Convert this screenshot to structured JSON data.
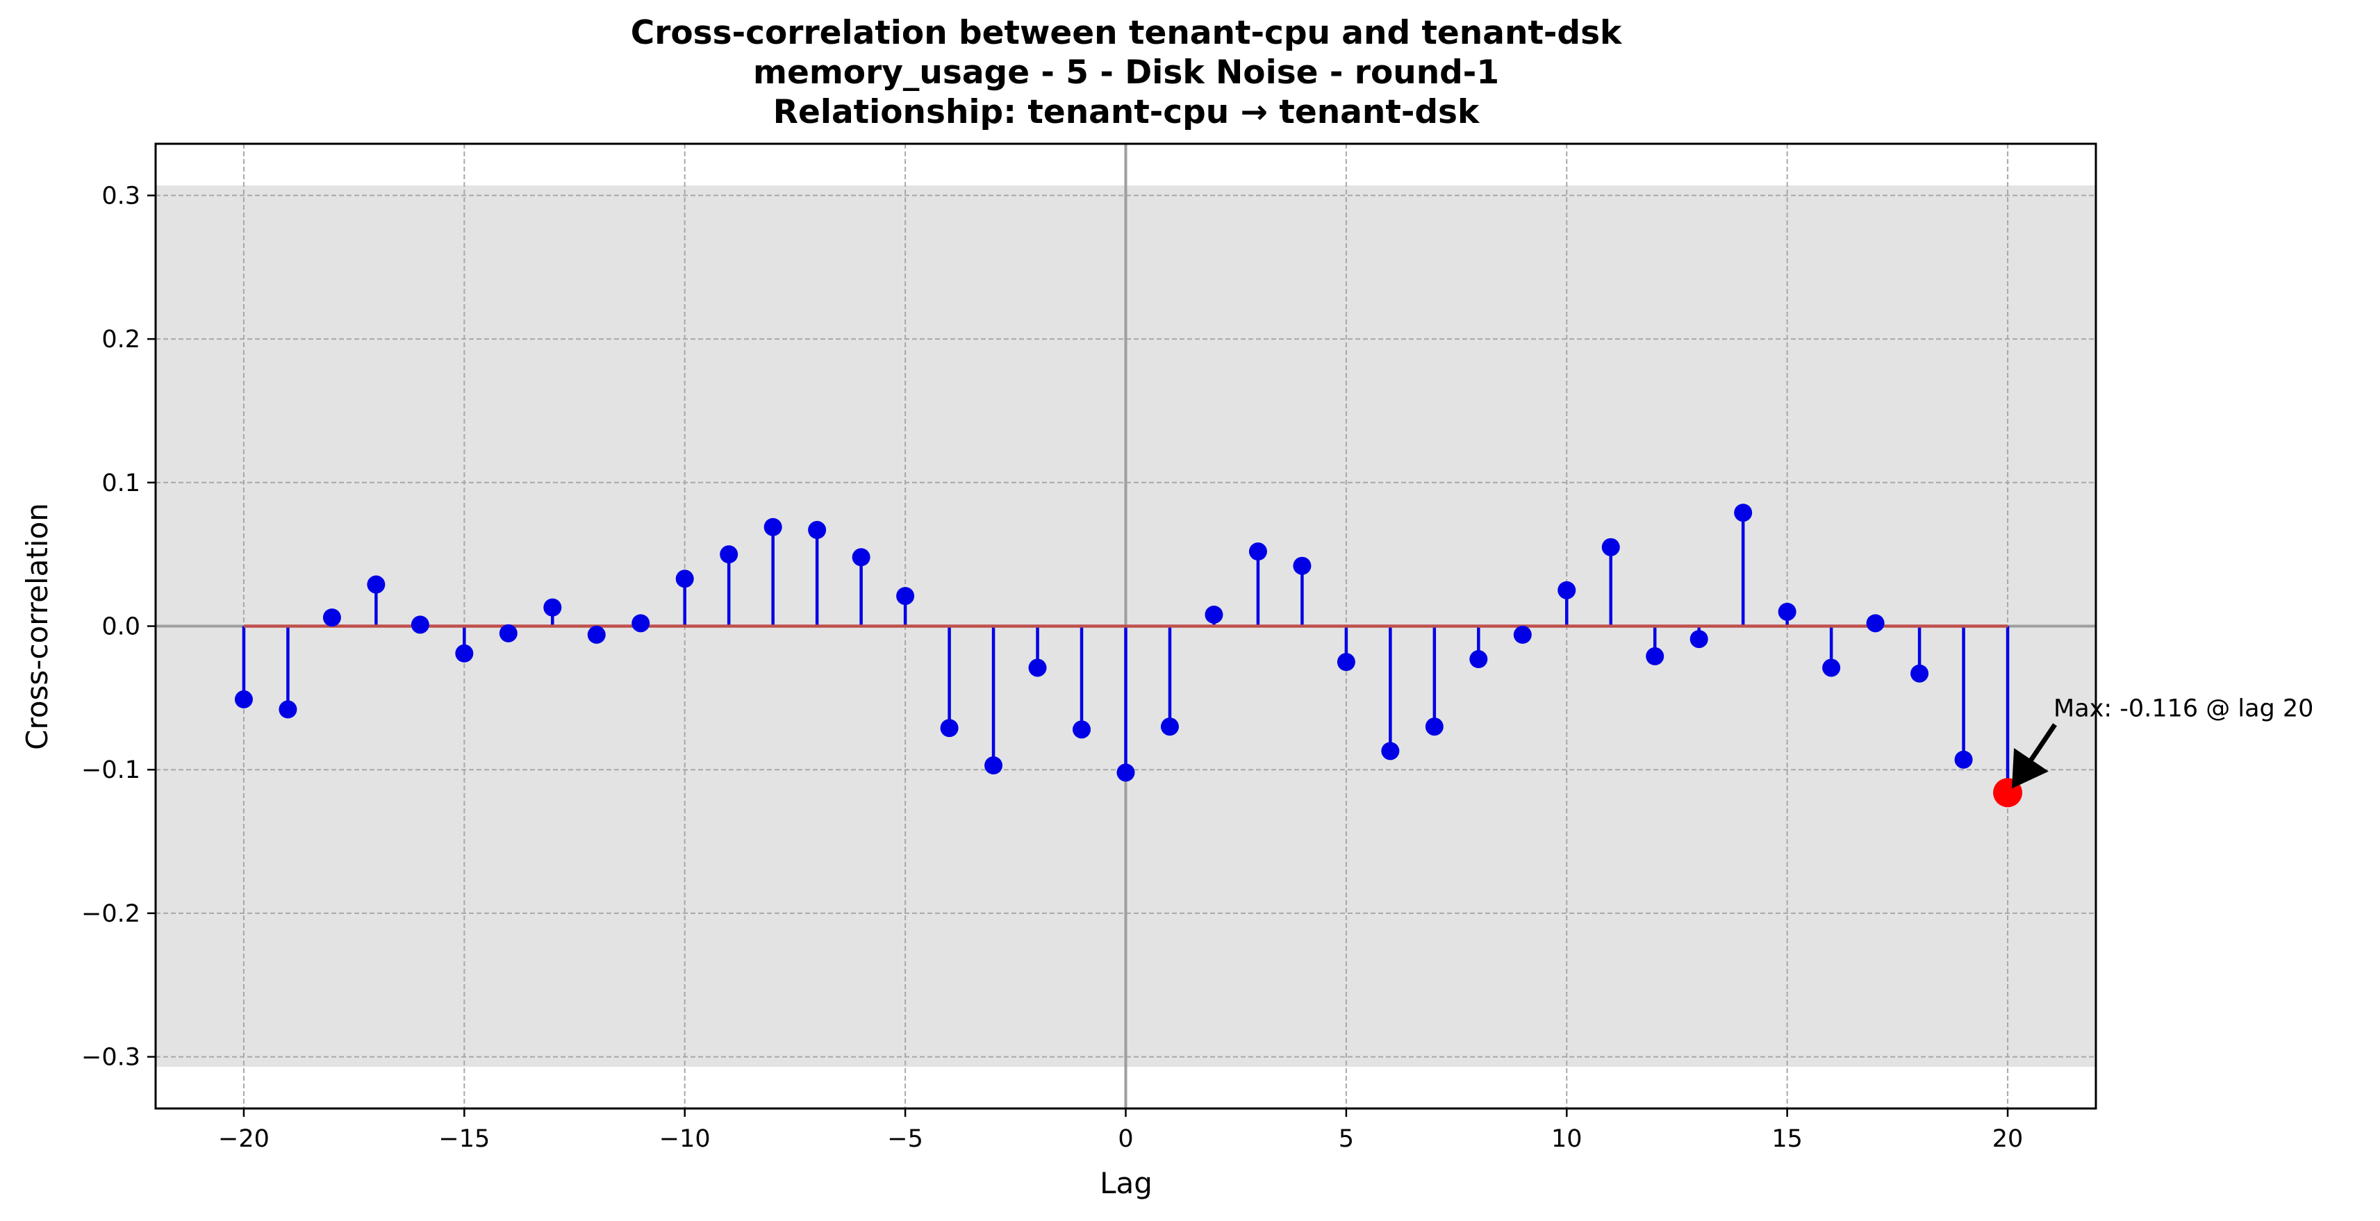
{
  "chart_data": {
    "type": "stem",
    "title_lines": [
      "Cross-correlation between tenant-cpu and tenant-dsk",
      "memory_usage - 5 - Disk Noise - round-1",
      "Relationship: tenant-cpu → tenant-dsk"
    ],
    "xlabel": "Lag",
    "ylabel": "Cross-correlation",
    "xlim": [
      -22,
      22
    ],
    "ylim": [
      -0.336,
      0.336
    ],
    "xticks": [
      -20,
      -15,
      -10,
      -5,
      0,
      5,
      10,
      15,
      20
    ],
    "xtick_labels": [
      "−20",
      "−15",
      "−10",
      "−5",
      "0",
      "5",
      "10",
      "15",
      "20"
    ],
    "yticks": [
      -0.3,
      -0.2,
      -0.1,
      0.0,
      0.1,
      0.2,
      0.3
    ],
    "ytick_labels": [
      "−0.3",
      "−0.2",
      "−0.1",
      "0.0",
      "0.1",
      "0.2",
      "0.3"
    ],
    "grid": true,
    "confidence_band": [
      -0.307,
      0.307
    ],
    "lags": [
      -20,
      -19,
      -18,
      -17,
      -16,
      -15,
      -14,
      -13,
      -12,
      -11,
      -10,
      -9,
      -8,
      -7,
      -6,
      -5,
      -4,
      -3,
      -2,
      -1,
      0,
      1,
      2,
      3,
      4,
      5,
      6,
      7,
      8,
      9,
      10,
      11,
      12,
      13,
      14,
      15,
      16,
      17,
      18,
      19,
      20
    ],
    "values": [
      -0.051,
      -0.058,
      0.006,
      0.029,
      0.001,
      -0.019,
      -0.005,
      0.013,
      -0.006,
      0.002,
      0.033,
      0.05,
      0.069,
      0.067,
      0.048,
      0.021,
      -0.071,
      -0.097,
      -0.029,
      -0.072,
      -0.102,
      -0.07,
      0.008,
      0.052,
      0.042,
      -0.025,
      -0.087,
      -0.07,
      -0.023,
      -0.006,
      0.025,
      0.055,
      -0.021,
      -0.009,
      0.079,
      0.01,
      -0.029,
      0.002,
      -0.033,
      -0.093,
      -0.116
    ],
    "max_point": {
      "lag": 20,
      "value": -0.116
    },
    "annotation": "Max: -0.116 @ lag 20",
    "colors": {
      "stem": "#0000e6",
      "marker": "#0000e6",
      "baseline": "#c0504d",
      "max_marker": "#ff0000",
      "band": "#e3e3e3",
      "grid": "#a8a8a8",
      "zero_line": "#9e9e9e",
      "arrow": "#000000"
    }
  }
}
